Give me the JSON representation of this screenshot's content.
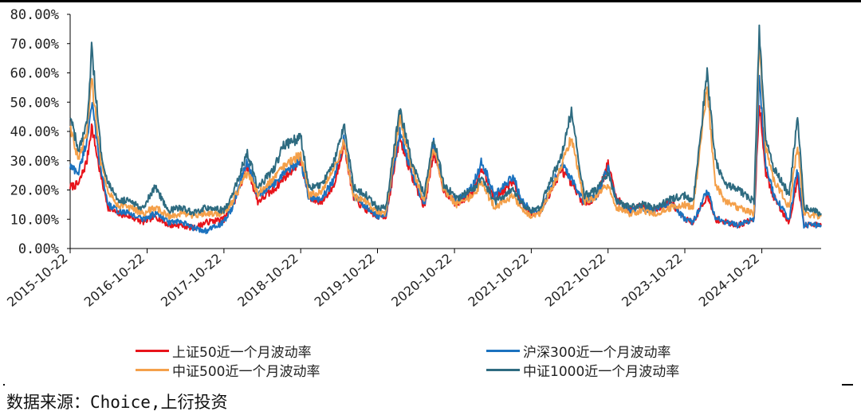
{
  "chart_data": {
    "type": "line",
    "ylim": [
      0,
      0.8
    ],
    "y_ticks": [
      "0.00%",
      "10.00%",
      "20.00%",
      "30.00%",
      "40.00%",
      "50.00%",
      "60.00%",
      "70.00%",
      "80.00%"
    ],
    "x_ticks": [
      "2015-10-22",
      "2016-10-22",
      "2017-10-22",
      "2018-10-22",
      "2019-10-22",
      "2020-10-22",
      "2021-10-22",
      "2022-10-22",
      "2023-10-22",
      "2024-10-22"
    ],
    "x_range": [
      "2015-10-22",
      "2025-07-31"
    ],
    "grid": false,
    "legend_position": "bottom",
    "series": [
      {
        "name": "上证50近一个月波动率",
        "color": "#e8141b",
        "points": [
          [
            "2015-10-22",
            0.21
          ],
          [
            "2015-12-01",
            0.22
          ],
          [
            "2016-01-10",
            0.3
          ],
          [
            "2016-02-01",
            0.42
          ],
          [
            "2016-03-15",
            0.25
          ],
          [
            "2016-04-20",
            0.14
          ],
          [
            "2016-06-01",
            0.12
          ],
          [
            "2016-08-01",
            0.11
          ],
          [
            "2016-10-01",
            0.09
          ],
          [
            "2016-12-01",
            0.11
          ],
          [
            "2017-02-01",
            0.08
          ],
          [
            "2017-04-01",
            0.08
          ],
          [
            "2017-06-01",
            0.07
          ],
          [
            "2017-08-01",
            0.09
          ],
          [
            "2017-10-22",
            0.1
          ],
          [
            "2017-12-01",
            0.14
          ],
          [
            "2018-02-10",
            0.28
          ],
          [
            "2018-04-01",
            0.16
          ],
          [
            "2018-06-15",
            0.2
          ],
          [
            "2018-08-01",
            0.24
          ],
          [
            "2018-10-22",
            0.3
          ],
          [
            "2018-12-01",
            0.17
          ],
          [
            "2019-02-01",
            0.16
          ],
          [
            "2019-04-01",
            0.22
          ],
          [
            "2019-05-15",
            0.36
          ],
          [
            "2019-07-01",
            0.17
          ],
          [
            "2019-09-01",
            0.13
          ],
          [
            "2019-10-22",
            0.11
          ],
          [
            "2019-12-01",
            0.11
          ],
          [
            "2020-02-05",
            0.38
          ],
          [
            "2020-04-01",
            0.25
          ],
          [
            "2020-06-01",
            0.14
          ],
          [
            "2020-07-15",
            0.33
          ],
          [
            "2020-09-01",
            0.2
          ],
          [
            "2020-11-01",
            0.15
          ],
          [
            "2021-01-15",
            0.19
          ],
          [
            "2021-03-01",
            0.28
          ],
          [
            "2021-05-01",
            0.17
          ],
          [
            "2021-07-30",
            0.23
          ],
          [
            "2021-09-01",
            0.16
          ],
          [
            "2021-10-22",
            0.12
          ],
          [
            "2021-12-01",
            0.12
          ],
          [
            "2022-03-15",
            0.27
          ],
          [
            "2022-05-01",
            0.22
          ],
          [
            "2022-07-01",
            0.15
          ],
          [
            "2022-09-01",
            0.18
          ],
          [
            "2022-10-22",
            0.29
          ],
          [
            "2022-12-01",
            0.17
          ],
          [
            "2023-02-01",
            0.13
          ],
          [
            "2023-04-01",
            0.15
          ],
          [
            "2023-06-01",
            0.13
          ],
          [
            "2023-08-15",
            0.16
          ],
          [
            "2023-10-22",
            0.1
          ],
          [
            "2023-12-01",
            0.09
          ],
          [
            "2024-02-05",
            0.18
          ],
          [
            "2024-03-15",
            0.1
          ],
          [
            "2024-05-01",
            0.09
          ],
          [
            "2024-07-01",
            0.08
          ],
          [
            "2024-09-15",
            0.1
          ],
          [
            "2024-10-10",
            0.5
          ],
          [
            "2024-11-10",
            0.26
          ],
          [
            "2024-12-15",
            0.18
          ],
          [
            "2025-02-01",
            0.12
          ],
          [
            "2025-03-01",
            0.09
          ],
          [
            "2025-04-10",
            0.24
          ],
          [
            "2025-05-10",
            0.08
          ],
          [
            "2025-07-31",
            0.08
          ]
        ]
      },
      {
        "name": "沪深300近一个月波动率",
        "color": "#1b72bf",
        "points": [
          [
            "2015-10-22",
            0.28
          ],
          [
            "2015-12-01",
            0.26
          ],
          [
            "2016-01-10",
            0.37
          ],
          [
            "2016-02-01",
            0.5
          ],
          [
            "2016-03-15",
            0.27
          ],
          [
            "2016-04-20",
            0.15
          ],
          [
            "2016-06-01",
            0.13
          ],
          [
            "2016-08-01",
            0.12
          ],
          [
            "2016-10-01",
            0.1
          ],
          [
            "2016-12-01",
            0.12
          ],
          [
            "2017-02-01",
            0.09
          ],
          [
            "2017-04-01",
            0.09
          ],
          [
            "2017-06-01",
            0.07
          ],
          [
            "2017-08-01",
            0.06
          ],
          [
            "2017-10-22",
            0.09
          ],
          [
            "2017-12-01",
            0.14
          ],
          [
            "2018-02-10",
            0.3
          ],
          [
            "2018-04-01",
            0.18
          ],
          [
            "2018-06-15",
            0.22
          ],
          [
            "2018-08-01",
            0.26
          ],
          [
            "2018-10-22",
            0.3
          ],
          [
            "2018-12-01",
            0.17
          ],
          [
            "2019-02-01",
            0.17
          ],
          [
            "2019-04-01",
            0.24
          ],
          [
            "2019-05-15",
            0.38
          ],
          [
            "2019-07-01",
            0.18
          ],
          [
            "2019-09-01",
            0.14
          ],
          [
            "2019-10-22",
            0.11
          ],
          [
            "2019-12-01",
            0.12
          ],
          [
            "2020-02-05",
            0.4
          ],
          [
            "2020-04-01",
            0.26
          ],
          [
            "2020-06-01",
            0.15
          ],
          [
            "2020-07-15",
            0.36
          ],
          [
            "2020-09-01",
            0.21
          ],
          [
            "2020-11-01",
            0.16
          ],
          [
            "2021-01-15",
            0.21
          ],
          [
            "2021-03-01",
            0.3
          ],
          [
            "2021-05-01",
            0.18
          ],
          [
            "2021-07-30",
            0.25
          ],
          [
            "2021-09-01",
            0.17
          ],
          [
            "2021-10-22",
            0.13
          ],
          [
            "2021-12-01",
            0.12
          ],
          [
            "2022-03-15",
            0.29
          ],
          [
            "2022-05-01",
            0.24
          ],
          [
            "2022-07-01",
            0.16
          ],
          [
            "2022-09-01",
            0.18
          ],
          [
            "2022-10-22",
            0.28
          ],
          [
            "2022-12-01",
            0.16
          ],
          [
            "2023-02-01",
            0.13
          ],
          [
            "2023-04-01",
            0.14
          ],
          [
            "2023-06-01",
            0.13
          ],
          [
            "2023-08-15",
            0.16
          ],
          [
            "2023-10-22",
            0.1
          ],
          [
            "2023-12-01",
            0.09
          ],
          [
            "2024-02-05",
            0.2
          ],
          [
            "2024-03-15",
            0.11
          ],
          [
            "2024-05-01",
            0.09
          ],
          [
            "2024-07-01",
            0.08
          ],
          [
            "2024-09-15",
            0.1
          ],
          [
            "2024-10-10",
            0.58
          ],
          [
            "2024-11-10",
            0.29
          ],
          [
            "2024-12-15",
            0.19
          ],
          [
            "2025-02-01",
            0.13
          ],
          [
            "2025-03-01",
            0.1
          ],
          [
            "2025-04-10",
            0.27
          ],
          [
            "2025-05-10",
            0.08
          ],
          [
            "2025-07-31",
            0.08
          ]
        ]
      },
      {
        "name": "中证500近一个月波动率",
        "color": "#f4a04a",
        "points": [
          [
            "2015-10-22",
            0.42
          ],
          [
            "2015-12-01",
            0.3
          ],
          [
            "2016-01-10",
            0.4
          ],
          [
            "2016-02-01",
            0.58
          ],
          [
            "2016-03-15",
            0.3
          ],
          [
            "2016-04-20",
            0.2
          ],
          [
            "2016-06-01",
            0.15
          ],
          [
            "2016-08-01",
            0.14
          ],
          [
            "2016-10-01",
            0.12
          ],
          [
            "2016-12-01",
            0.14
          ],
          [
            "2017-02-01",
            0.11
          ],
          [
            "2017-04-01",
            0.12
          ],
          [
            "2017-06-01",
            0.11
          ],
          [
            "2017-08-01",
            0.12
          ],
          [
            "2017-10-22",
            0.12
          ],
          [
            "2017-12-01",
            0.16
          ],
          [
            "2018-02-10",
            0.26
          ],
          [
            "2018-04-01",
            0.19
          ],
          [
            "2018-06-15",
            0.24
          ],
          [
            "2018-08-01",
            0.28
          ],
          [
            "2018-10-22",
            0.32
          ],
          [
            "2018-12-01",
            0.18
          ],
          [
            "2019-02-01",
            0.2
          ],
          [
            "2019-04-01",
            0.28
          ],
          [
            "2019-05-15",
            0.36
          ],
          [
            "2019-07-01",
            0.18
          ],
          [
            "2019-09-01",
            0.16
          ],
          [
            "2019-10-22",
            0.12
          ],
          [
            "2019-12-01",
            0.12
          ],
          [
            "2020-02-05",
            0.44
          ],
          [
            "2020-04-01",
            0.28
          ],
          [
            "2020-06-01",
            0.16
          ],
          [
            "2020-07-15",
            0.35
          ],
          [
            "2020-09-01",
            0.2
          ],
          [
            "2020-11-01",
            0.15
          ],
          [
            "2021-01-15",
            0.18
          ],
          [
            "2021-03-01",
            0.22
          ],
          [
            "2021-05-01",
            0.14
          ],
          [
            "2021-07-30",
            0.18
          ],
          [
            "2021-09-01",
            0.14
          ],
          [
            "2021-10-22",
            0.11
          ],
          [
            "2021-12-01",
            0.12
          ],
          [
            "2022-03-15",
            0.28
          ],
          [
            "2022-05-01",
            0.38
          ],
          [
            "2022-07-01",
            0.16
          ],
          [
            "2022-09-01",
            0.18
          ],
          [
            "2022-10-22",
            0.22
          ],
          [
            "2022-12-01",
            0.14
          ],
          [
            "2023-02-01",
            0.12
          ],
          [
            "2023-04-01",
            0.13
          ],
          [
            "2023-06-01",
            0.12
          ],
          [
            "2023-08-15",
            0.14
          ],
          [
            "2023-10-22",
            0.15
          ],
          [
            "2023-12-01",
            0.14
          ],
          [
            "2024-02-05",
            0.55
          ],
          [
            "2024-03-15",
            0.22
          ],
          [
            "2024-05-01",
            0.16
          ],
          [
            "2024-07-01",
            0.14
          ],
          [
            "2024-09-15",
            0.12
          ],
          [
            "2024-10-10",
            0.7
          ],
          [
            "2024-11-10",
            0.34
          ],
          [
            "2024-12-15",
            0.24
          ],
          [
            "2025-02-01",
            0.18
          ],
          [
            "2025-03-01",
            0.14
          ],
          [
            "2025-04-10",
            0.36
          ],
          [
            "2025-05-10",
            0.12
          ],
          [
            "2025-07-31",
            0.11
          ]
        ]
      },
      {
        "name": "中证1000近一个月波动率",
        "color": "#2e6b80",
        "points": [
          [
            "2015-10-22",
            0.45
          ],
          [
            "2015-12-01",
            0.33
          ],
          [
            "2016-01-10",
            0.42
          ],
          [
            "2016-02-01",
            0.68
          ],
          [
            "2016-03-15",
            0.34
          ],
          [
            "2016-04-20",
            0.22
          ],
          [
            "2016-06-01",
            0.17
          ],
          [
            "2016-08-01",
            0.16
          ],
          [
            "2016-10-01",
            0.14
          ],
          [
            "2016-12-01",
            0.21
          ],
          [
            "2017-02-01",
            0.13
          ],
          [
            "2017-04-01",
            0.14
          ],
          [
            "2017-06-01",
            0.12
          ],
          [
            "2017-08-01",
            0.14
          ],
          [
            "2017-10-22",
            0.13
          ],
          [
            "2017-12-01",
            0.18
          ],
          [
            "2018-02-10",
            0.33
          ],
          [
            "2018-04-01",
            0.21
          ],
          [
            "2018-06-15",
            0.27
          ],
          [
            "2018-08-01",
            0.35
          ],
          [
            "2018-10-22",
            0.38
          ],
          [
            "2018-12-01",
            0.21
          ],
          [
            "2019-02-01",
            0.22
          ],
          [
            "2019-04-01",
            0.3
          ],
          [
            "2019-05-15",
            0.42
          ],
          [
            "2019-07-01",
            0.21
          ],
          [
            "2019-09-01",
            0.18
          ],
          [
            "2019-10-22",
            0.14
          ],
          [
            "2019-12-01",
            0.14
          ],
          [
            "2020-02-05",
            0.48
          ],
          [
            "2020-04-01",
            0.3
          ],
          [
            "2020-06-01",
            0.18
          ],
          [
            "2020-07-15",
            0.38
          ],
          [
            "2020-09-01",
            0.22
          ],
          [
            "2020-11-01",
            0.17
          ],
          [
            "2021-01-15",
            0.2
          ],
          [
            "2021-03-01",
            0.24
          ],
          [
            "2021-05-01",
            0.16
          ],
          [
            "2021-07-30",
            0.2
          ],
          [
            "2021-09-01",
            0.16
          ],
          [
            "2021-10-22",
            0.13
          ],
          [
            "2021-12-01",
            0.14
          ],
          [
            "2022-03-15",
            0.32
          ],
          [
            "2022-05-01",
            0.47
          ],
          [
            "2022-07-01",
            0.18
          ],
          [
            "2022-09-01",
            0.2
          ],
          [
            "2022-10-22",
            0.26
          ],
          [
            "2022-12-01",
            0.16
          ],
          [
            "2023-02-01",
            0.14
          ],
          [
            "2023-04-01",
            0.15
          ],
          [
            "2023-06-01",
            0.14
          ],
          [
            "2023-08-15",
            0.17
          ],
          [
            "2023-10-22",
            0.18
          ],
          [
            "2023-12-01",
            0.16
          ],
          [
            "2024-02-05",
            0.6
          ],
          [
            "2024-03-15",
            0.3
          ],
          [
            "2024-05-01",
            0.22
          ],
          [
            "2024-07-01",
            0.2
          ],
          [
            "2024-09-15",
            0.16
          ],
          [
            "2024-10-10",
            0.75
          ],
          [
            "2024-11-10",
            0.38
          ],
          [
            "2024-12-15",
            0.28
          ],
          [
            "2025-02-01",
            0.22
          ],
          [
            "2025-03-01",
            0.18
          ],
          [
            "2025-04-10",
            0.46
          ],
          [
            "2025-05-10",
            0.14
          ],
          [
            "2025-07-31",
            0.12
          ]
        ]
      }
    ]
  },
  "source_text": "数据来源：Choice,上衍投资"
}
